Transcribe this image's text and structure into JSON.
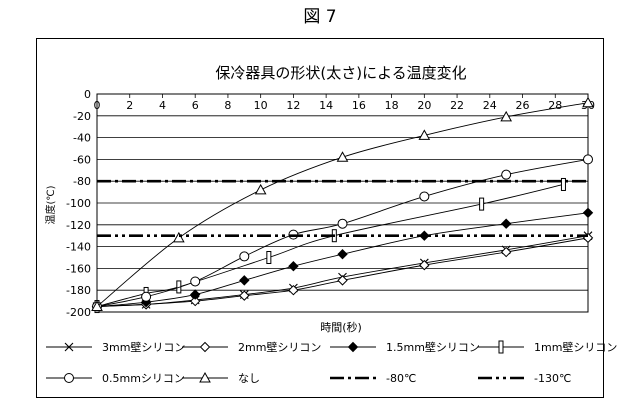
{
  "figure_label": "図 7",
  "chart_data": {
    "type": "line",
    "title": "保冷器具の形状(太さ)による温度変化",
    "xlabel": "時間(秒)",
    "ylabel": "温度(℃)",
    "xlim": [
      0,
      30
    ],
    "ylim": [
      -200,
      0
    ],
    "x_ticks": [
      0,
      2,
      4,
      6,
      8,
      10,
      12,
      14,
      16,
      18,
      20,
      22,
      24,
      26,
      28,
      30
    ],
    "y_ticks": [
      0,
      -20,
      -40,
      -60,
      -80,
      -100,
      -120,
      -140,
      -160,
      -180,
      -200
    ],
    "grid": "horizontal",
    "legend_position": "bottom",
    "series": [
      {
        "name": "3mm壁シリコン",
        "marker": "x",
        "style": "solid",
        "x": [
          0,
          3,
          6,
          9,
          12,
          15,
          20,
          25,
          30
        ],
        "y": [
          -195,
          -193,
          -189,
          -184,
          -178,
          -168,
          -155,
          -143,
          -130
        ]
      },
      {
        "name": "2mm壁シリコン",
        "marker": "diamond-open",
        "style": "solid",
        "x": [
          0,
          3,
          6,
          9,
          12,
          15,
          20,
          25,
          30
        ],
        "y": [
          -195,
          -193,
          -190,
          -185,
          -180,
          -171,
          -157,
          -145,
          -132
        ]
      },
      {
        "name": "1.5mm壁シリコン",
        "marker": "diamond-filled",
        "style": "solid",
        "x": [
          0,
          3,
          6,
          9,
          12,
          15,
          20,
          25,
          30
        ],
        "y": [
          -195,
          -191,
          -184,
          -171,
          -158,
          -147,
          -130,
          -119,
          -109
        ]
      },
      {
        "name": "1mm壁シリコン",
        "marker": "bar",
        "style": "solid",
        "x": [
          0,
          3,
          5,
          10.5,
          14.5,
          23.5,
          28.5
        ],
        "y": [
          -195,
          -183,
          -177,
          -150,
          -130,
          -101,
          -83
        ]
      },
      {
        "name": "0.5mmシリコン",
        "marker": "circle",
        "style": "solid",
        "x": [
          0,
          3,
          6,
          9,
          12,
          15,
          20,
          25,
          30
        ],
        "y": [
          -195,
          -186,
          -172,
          -149,
          -129,
          -119,
          -94,
          -74,
          -60
        ]
      },
      {
        "name": "なし",
        "marker": "triangle",
        "style": "solid",
        "x": [
          0,
          5,
          10,
          15,
          20,
          25,
          30
        ],
        "y": [
          -195,
          -132,
          -88,
          -58,
          -38,
          -21,
          -8
        ]
      },
      {
        "name": "-80℃",
        "marker": "none",
        "style": "dash-dot",
        "x": [
          0,
          30
        ],
        "y": [
          -80,
          -80
        ]
      },
      {
        "name": "-130℃",
        "marker": "none",
        "style": "dash-dot-dot",
        "x": [
          0,
          30
        ],
        "y": [
          -130,
          -130
        ]
      }
    ]
  }
}
